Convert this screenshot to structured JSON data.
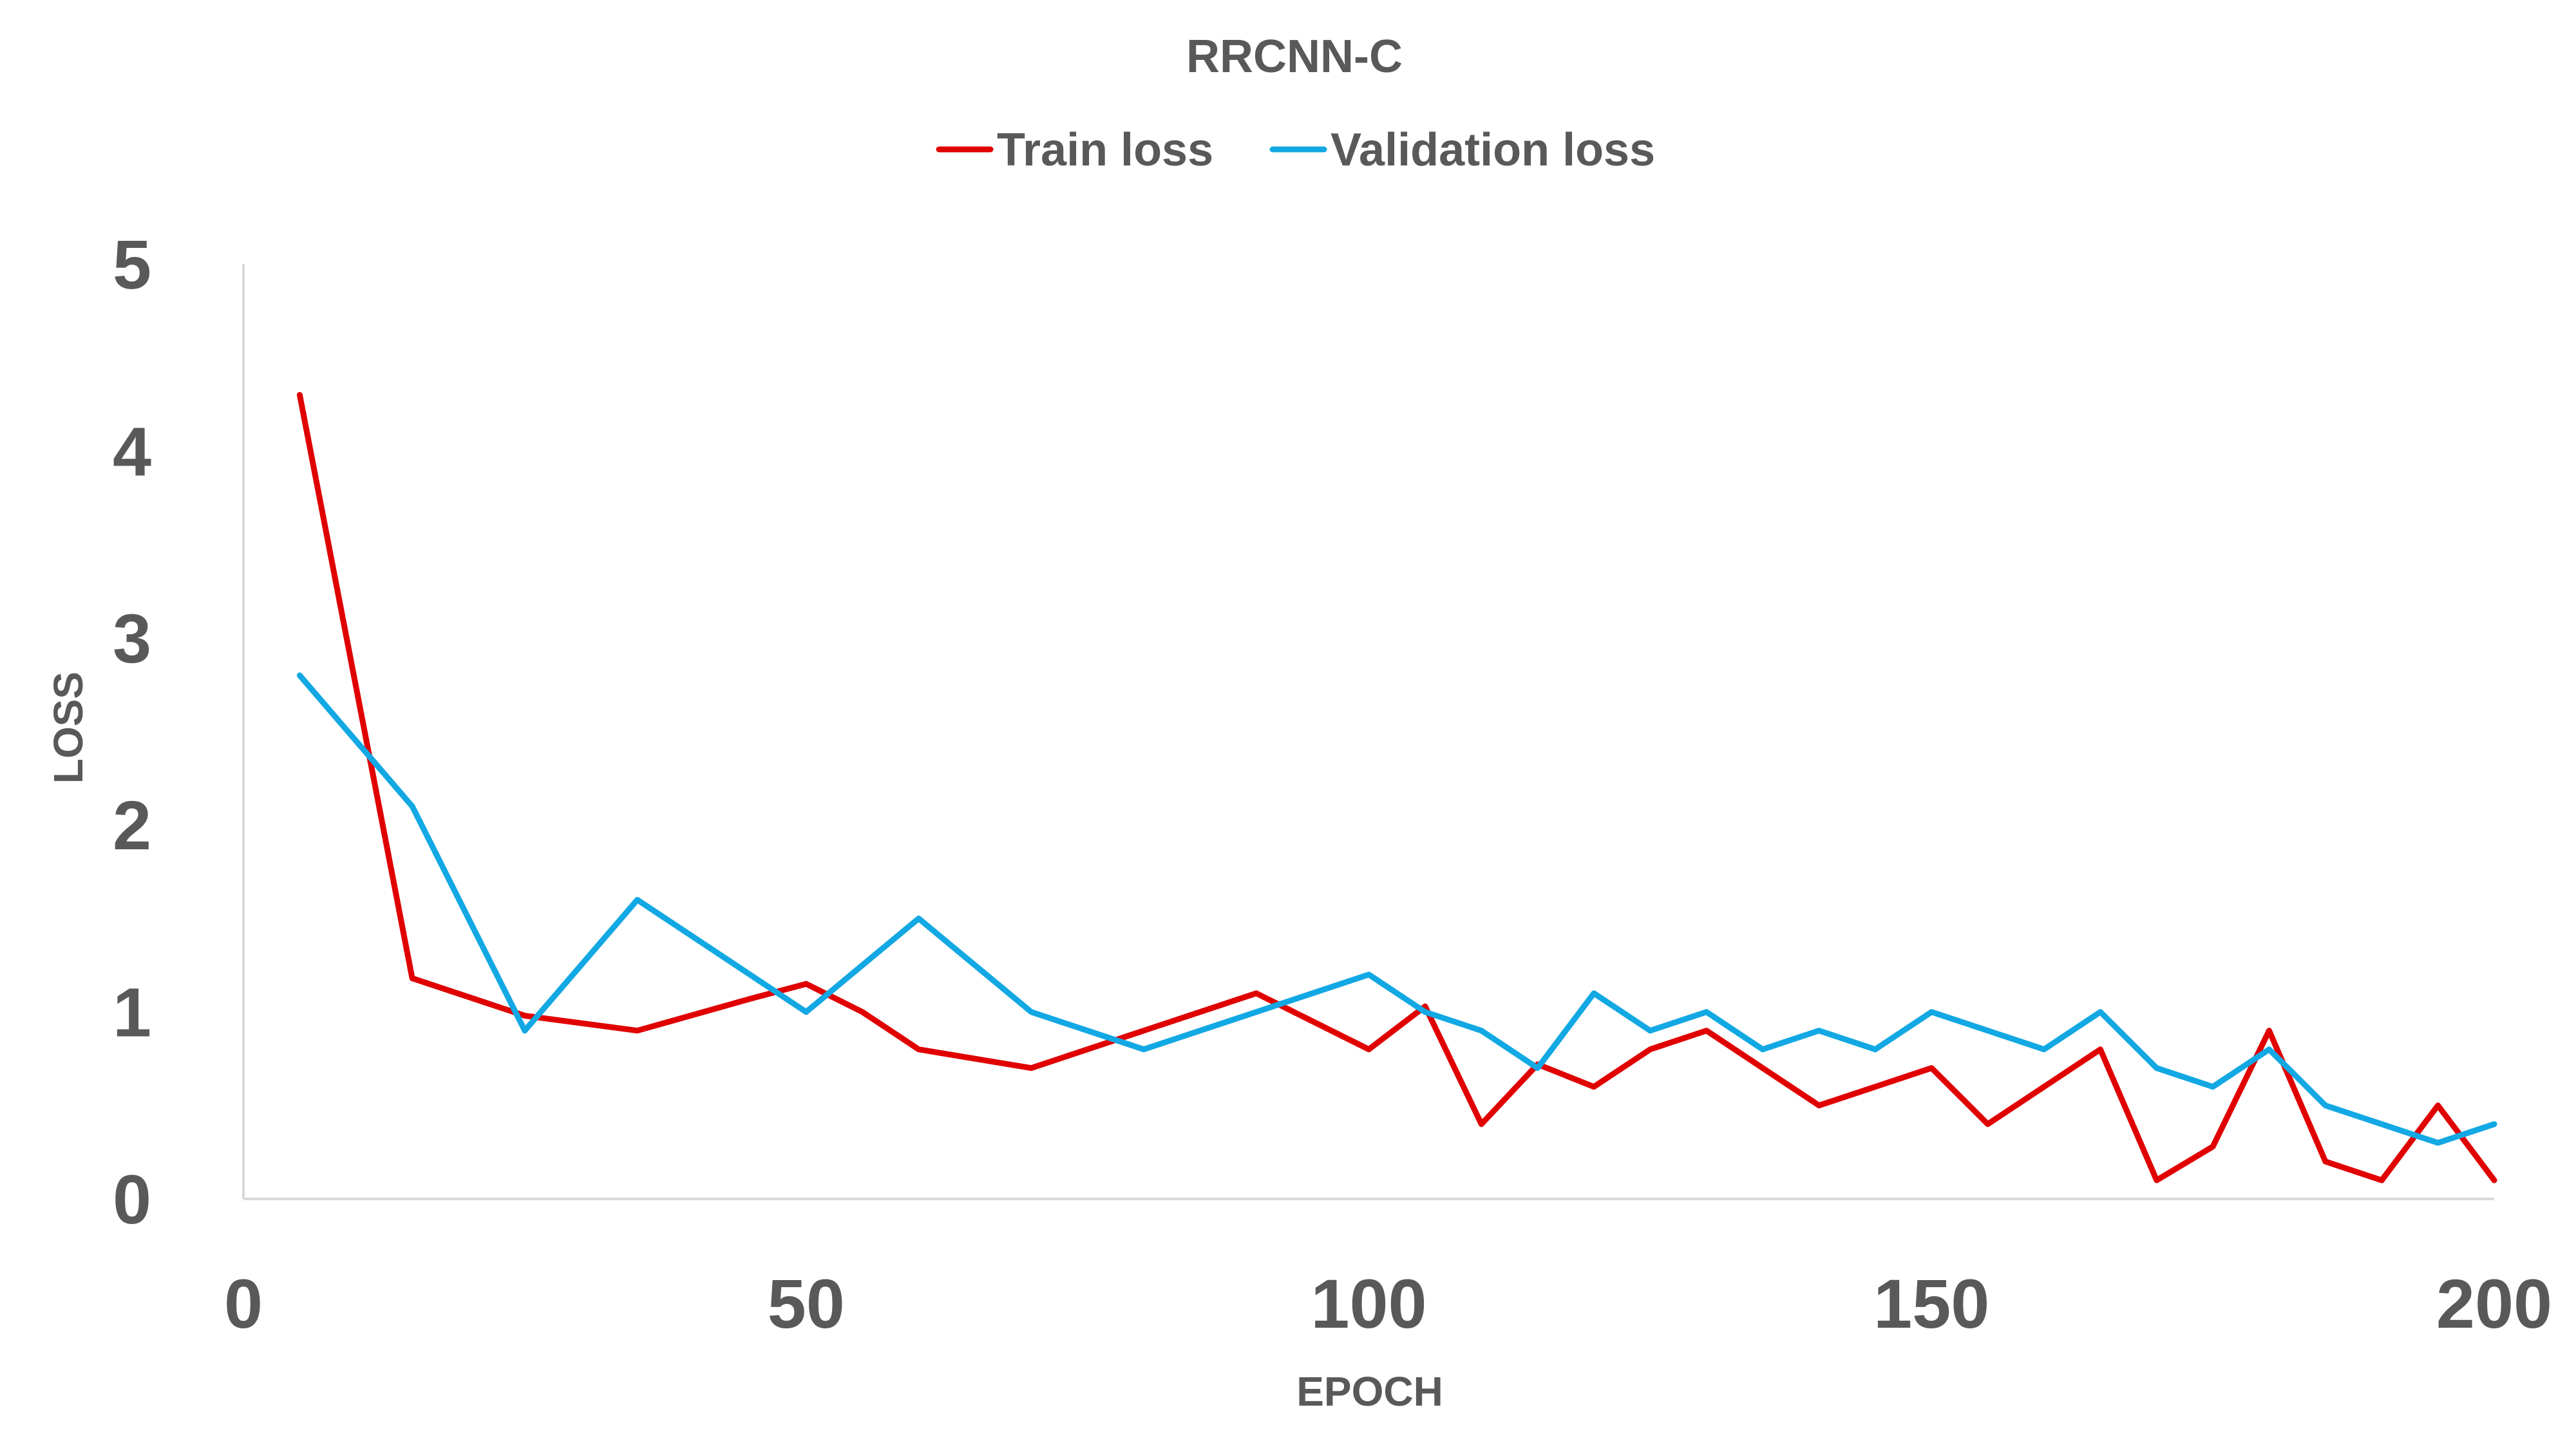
{
  "chart_data": {
    "type": "line",
    "title": "RRCNN-C",
    "xlabel": "EPOCH",
    "ylabel": "LOSS",
    "xlim": [
      0,
      200
    ],
    "ylim": [
      0,
      5
    ],
    "x_ticks": [
      "0",
      "50",
      "100",
      "150",
      "200"
    ],
    "y_ticks": [
      "0",
      "1",
      "2",
      "3",
      "4",
      "5"
    ],
    "grid": false,
    "legend_position": "top-center",
    "x": [
      5,
      15,
      25,
      35,
      45,
      50,
      55,
      60,
      70,
      80,
      90,
      100,
      105,
      110,
      115,
      120,
      125,
      130,
      135,
      140,
      145,
      150,
      155,
      160,
      165,
      170,
      175,
      180,
      185,
      190,
      195,
      200
    ],
    "series": [
      {
        "name": "Train loss",
        "color": "#e00000",
        "values": [
          4.3,
          1.18,
          0.98,
          0.9,
          1.07,
          1.15,
          1.0,
          0.8,
          0.7,
          0.9,
          1.1,
          0.8,
          1.03,
          0.4,
          0.72,
          0.6,
          0.8,
          0.9,
          0.7,
          0.5,
          0.6,
          0.7,
          0.4,
          0.6,
          0.8,
          0.1,
          0.28,
          0.9,
          0.2,
          0.1,
          0.5,
          0.1
        ]
      },
      {
        "name": "Validation loss",
        "color": "#12a8e3",
        "values": [
          2.8,
          2.1,
          0.9,
          1.6,
          1.2,
          1.0,
          1.25,
          1.5,
          1.0,
          0.8,
          1.0,
          1.2,
          1.0,
          0.9,
          0.7,
          1.1,
          0.9,
          1.0,
          0.8,
          0.9,
          0.8,
          1.0,
          0.9,
          0.8,
          1.0,
          0.7,
          0.6,
          0.8,
          0.5,
          0.4,
          0.3,
          0.4
        ]
      }
    ]
  }
}
